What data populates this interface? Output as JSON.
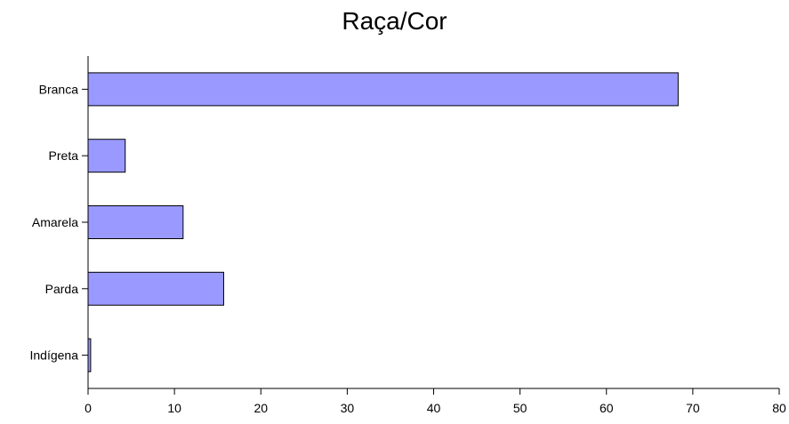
{
  "chart_data": {
    "type": "bar",
    "orientation": "horizontal",
    "title": "Raça/Cor",
    "categories": [
      "Branca",
      "Preta",
      "Amarela",
      "Parda",
      "Indígena"
    ],
    "values": [
      68.3,
      4.3,
      11.0,
      15.7,
      0.3
    ],
    "xlim": [
      0,
      80
    ],
    "x_ticks": [
      0,
      10,
      20,
      30,
      40,
      50,
      60,
      70,
      80
    ],
    "xlabel": "",
    "ylabel": "",
    "grid": false,
    "legend": "none",
    "colors": {
      "bar_fill": "#9999ff",
      "bar_stroke": "#000000",
      "axis": "#000000"
    }
  }
}
